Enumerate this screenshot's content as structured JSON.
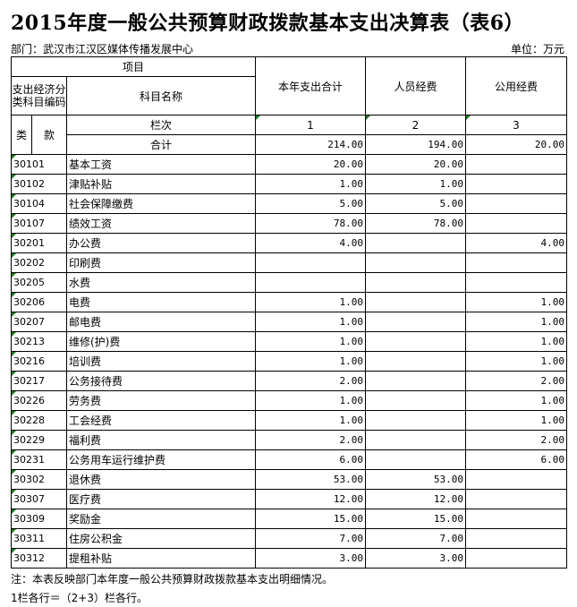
{
  "title": "2015年度一般公共预算财政拨款基本支出决算表（表6）",
  "department": "部门：武汉市江汉区媒体传播发展中心",
  "unit": "单位：万元",
  "headers": {
    "project": "项目",
    "code": "支出经济分类科目编码",
    "name": "科目名称",
    "lei": "类",
    "kuan": "款",
    "lanci": "栏次",
    "total": "合计",
    "col1": "本年支出合计",
    "col2": "人员经费",
    "col3": "公用经费",
    "n1": "1",
    "n2": "2",
    "n3": "3"
  },
  "totals": [
    "214.00",
    "194.00",
    "20.00"
  ],
  "rows": [
    {
      "code": "30101",
      "name": "基本工资",
      "c1": "20.00",
      "c2": "20.00",
      "c3": ""
    },
    {
      "code": "30102",
      "name": "津贴补贴",
      "c1": "1.00",
      "c2": "1.00",
      "c3": ""
    },
    {
      "code": "30104",
      "name": "社会保障缴费",
      "c1": "5.00",
      "c2": "5.00",
      "c3": ""
    },
    {
      "code": "30107",
      "name": "绩效工资",
      "c1": "78.00",
      "c2": "78.00",
      "c3": ""
    },
    {
      "code": "30201",
      "name": "办公费",
      "c1": "4.00",
      "c2": "",
      "c3": "4.00"
    },
    {
      "code": "30202",
      "name": "印刷费",
      "c1": "",
      "c2": "",
      "c3": ""
    },
    {
      "code": "30205",
      "name": "水费",
      "c1": "",
      "c2": "",
      "c3": ""
    },
    {
      "code": "30206",
      "name": "电费",
      "c1": "1.00",
      "c2": "",
      "c3": "1.00"
    },
    {
      "code": "30207",
      "name": "邮电费",
      "c1": "1.00",
      "c2": "",
      "c3": "1.00"
    },
    {
      "code": "30213",
      "name": "维修(护)费",
      "c1": "1.00",
      "c2": "",
      "c3": "1.00"
    },
    {
      "code": "30216",
      "name": "培训费",
      "c1": "1.00",
      "c2": "",
      "c3": "1.00"
    },
    {
      "code": "30217",
      "name": "公务接待费",
      "c1": "2.00",
      "c2": "",
      "c3": "2.00"
    },
    {
      "code": "30226",
      "name": "劳务费",
      "c1": "1.00",
      "c2": "",
      "c3": "1.00"
    },
    {
      "code": "30228",
      "name": "工会经费",
      "c1": "1.00",
      "c2": "",
      "c3": "1.00"
    },
    {
      "code": "30229",
      "name": "福利费",
      "c1": "2.00",
      "c2": "",
      "c3": "2.00"
    },
    {
      "code": "30231",
      "name": "公务用车运行维护费",
      "c1": "6.00",
      "c2": "",
      "c3": "6.00"
    },
    {
      "code": "30302",
      "name": "退休费",
      "c1": "53.00",
      "c2": "53.00",
      "c3": ""
    },
    {
      "code": "30307",
      "name": "医疗费",
      "c1": "12.00",
      "c2": "12.00",
      "c3": ""
    },
    {
      "code": "30309",
      "name": "奖励金",
      "c1": "15.00",
      "c2": "15.00",
      "c3": ""
    },
    {
      "code": "30311",
      "name": "住房公积金",
      "c1": "7.00",
      "c2": "7.00",
      "c3": ""
    },
    {
      "code": "30312",
      "name": "提租补贴",
      "c1": "3.00",
      "c2": "3.00",
      "c3": ""
    }
  ],
  "notes": [
    "注：本表反映部门本年度一般公共预算财政拨款基本支出明细情况。",
    "1栏各行＝（2+3）栏各行。"
  ],
  "colors": {
    "cell_marker": "#1a7a1a"
  }
}
